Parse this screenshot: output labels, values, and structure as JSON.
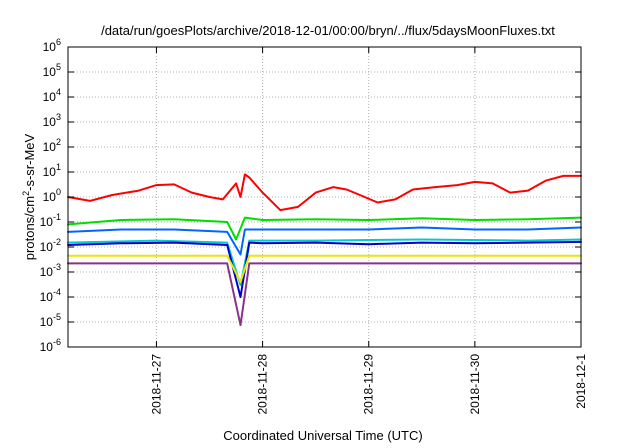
{
  "chart_data": {
    "type": "line",
    "title": "/data/run/goesPlots/archive/2018-12-01/00:00/bryn/../flux/5daysMoonFluxes.txt",
    "xlabel": "Coordinated Universal Time (UTC)",
    "ylabel": "protons/cm2-s-sr-MeV",
    "yscale": "log",
    "xlim": [
      "2018-11-26 04:00",
      "2018-12-01 00:00"
    ],
    "ylim": [
      1e-06,
      1000000.0
    ],
    "grid": true,
    "legend": "none",
    "x_ticks": [
      "2018-11-27",
      "2018-11-28",
      "2018-11-29",
      "2018-11-30",
      "2018-12-1"
    ],
    "y_ticks": [
      {
        "base": "10",
        "exp": "-6",
        "value": 1e-06
      },
      {
        "base": "10",
        "exp": "-5",
        "value": 1e-05
      },
      {
        "base": "10",
        "exp": "-4",
        "value": 0.0001
      },
      {
        "base": "10",
        "exp": "-3",
        "value": 0.001
      },
      {
        "base": "10",
        "exp": "-2",
        "value": 0.01
      },
      {
        "base": "10",
        "exp": "-1",
        "value": 0.1
      },
      {
        "base": "10",
        "exp": "0",
        "value": 1
      },
      {
        "base": "10",
        "exp": "1",
        "value": 10
      },
      {
        "base": "10",
        "exp": "2",
        "value": 100
      },
      {
        "base": "10",
        "exp": "3",
        "value": 1000
      },
      {
        "base": "10",
        "exp": "4",
        "value": 10000
      },
      {
        "base": "10",
        "exp": "5",
        "value": 100000
      },
      {
        "base": "10",
        "exp": "6",
        "value": 1000000
      }
    ],
    "series": [
      {
        "color": "#ff0000",
        "x": [
          "2018-11-26 04:00",
          "2018-11-26 09:00",
          "2018-11-26 14:00",
          "2018-11-26 20:00",
          "2018-11-27 00:00",
          "2018-11-27 04:00",
          "2018-11-27 08:00",
          "2018-11-27 12:00",
          "2018-11-27 15:00",
          "2018-11-27 18:00",
          "2018-11-27 19:00",
          "2018-11-27 20:00",
          "2018-11-27 21:00",
          "2018-11-28 00:00",
          "2018-11-28 04:00",
          "2018-11-28 08:00",
          "2018-11-28 12:00",
          "2018-11-28 16:00",
          "2018-11-28 19:00",
          "2018-11-28 22:00",
          "2018-11-29 02:00",
          "2018-11-29 06:00",
          "2018-11-29 10:00",
          "2018-11-29 15:00",
          "2018-11-29 20:00",
          "2018-11-30 00:00",
          "2018-11-30 04:00",
          "2018-11-30 08:00",
          "2018-11-30 12:00",
          "2018-11-30 16:00",
          "2018-11-30 20:00",
          "2018-12-01 00:00"
        ],
        "y": [
          1.0,
          0.7,
          1.2,
          1.8,
          3.0,
          3.2,
          1.5,
          1.0,
          0.8,
          3.5,
          1.0,
          8.0,
          6.0,
          1.5,
          0.3,
          0.4,
          1.5,
          2.5,
          2.0,
          1.2,
          0.6,
          0.8,
          2.0,
          2.5,
          3.0,
          4.0,
          3.5,
          1.5,
          1.8,
          4.5,
          7.0,
          7.0
        ]
      },
      {
        "color": "#00dd00",
        "x": [
          "2018-11-26 04:00",
          "2018-11-26 16:00",
          "2018-11-27 04:00",
          "2018-11-27 16:00",
          "2018-11-27 18:00",
          "2018-11-27 20:00",
          "2018-11-28 00:00",
          "2018-11-28 12:00",
          "2018-11-29 00:00",
          "2018-11-29 12:00",
          "2018-11-30 00:00",
          "2018-11-30 12:00",
          "2018-12-01 00:00"
        ],
        "y": [
          0.08,
          0.12,
          0.13,
          0.1,
          0.02,
          0.15,
          0.12,
          0.13,
          0.12,
          0.14,
          0.12,
          0.13,
          0.15
        ]
      },
      {
        "color": "#0066ff",
        "x": [
          "2018-11-26 04:00",
          "2018-11-26 16:00",
          "2018-11-27 04:00",
          "2018-11-27 16:00",
          "2018-11-27 19:00",
          "2018-11-27 20:00",
          "2018-11-28 00:00",
          "2018-11-28 12:00",
          "2018-11-29 00:00",
          "2018-11-29 12:00",
          "2018-11-30 00:00",
          "2018-11-30 12:00",
          "2018-12-01 00:00"
        ],
        "y": [
          0.04,
          0.05,
          0.05,
          0.04,
          0.005,
          0.05,
          0.05,
          0.05,
          0.05,
          0.06,
          0.05,
          0.05,
          0.06
        ]
      },
      {
        "color": "#00cccc",
        "x": [
          "2018-11-26 04:00",
          "2018-11-27 00:00",
          "2018-11-27 16:00",
          "2018-11-27 19:00",
          "2018-11-27 21:00",
          "2018-11-28 12:00",
          "2018-11-29 12:00",
          "2018-11-30 12:00",
          "2018-12-01 00:00"
        ],
        "y": [
          0.015,
          0.018,
          0.015,
          0.0003,
          0.018,
          0.018,
          0.02,
          0.018,
          0.02
        ]
      },
      {
        "color": "#0000cc",
        "x": [
          "2018-11-26 04:00",
          "2018-11-26 16:00",
          "2018-11-27 04:00",
          "2018-11-27 16:00",
          "2018-11-27 19:00",
          "2018-11-27 21:00",
          "2018-11-28 00:00",
          "2018-11-28 12:00",
          "2018-11-29 00:00",
          "2018-11-29 12:00",
          "2018-11-30 00:00",
          "2018-11-30 12:00",
          "2018-12-01 00:00"
        ],
        "y": [
          0.012,
          0.014,
          0.015,
          0.012,
          0.0001,
          0.015,
          0.014,
          0.015,
          0.013,
          0.015,
          0.014,
          0.015,
          0.016
        ]
      },
      {
        "color": "#e8e800",
        "x": [
          "2018-11-26 04:00",
          "2018-11-27 00:00",
          "2018-11-27 16:00",
          "2018-11-27 19:00",
          "2018-11-27 21:00",
          "2018-11-28 12:00",
          "2018-11-29 12:00",
          "2018-11-30 12:00",
          "2018-12-01 00:00"
        ],
        "y": [
          0.0045,
          0.0045,
          0.0045,
          0.0004,
          0.0045,
          0.0045,
          0.0045,
          0.0045,
          0.0045
        ]
      },
      {
        "color": "#883388",
        "x": [
          "2018-11-26 04:00",
          "2018-11-27 00:00",
          "2018-11-27 12:00",
          "2018-11-27 16:00",
          "2018-11-27 19:00",
          "2018-11-27 21:00",
          "2018-11-28 12:00",
          "2018-11-29 12:00",
          "2018-11-30 12:00",
          "2018-12-01 00:00"
        ],
        "y": [
          0.0022,
          0.0022,
          0.0022,
          0.0022,
          7.5e-06,
          0.0022,
          0.0022,
          0.0022,
          0.0022,
          0.0022
        ]
      }
    ]
  }
}
